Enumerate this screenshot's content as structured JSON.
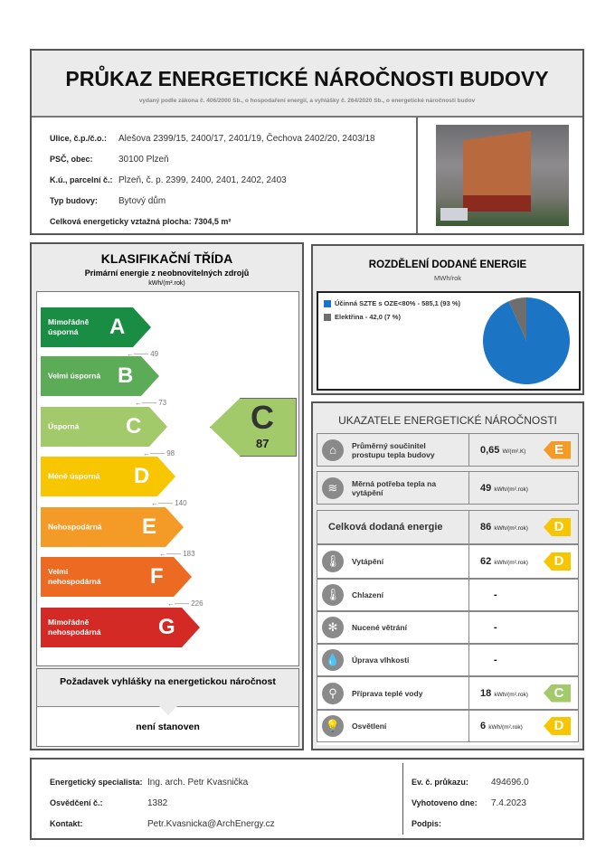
{
  "header": {
    "title": "PRŮKAZ ENERGETICKÉ NÁROČNOSTI BUDOVY",
    "subtitle": "vydaný podle zákona č. 406/2000 Sb., o hospodaření energií, a vyhlášky č. 264/2020 Sb., o energetické náročnosti budov"
  },
  "building": {
    "street_label": "Ulice, č.p./č.o.:",
    "street": "Alešova 2399/15, 2400/17, 2401/19, Čechova 2402/20, 2403/18",
    "zip_label": "PSČ, obec:",
    "zip": "30100 Plzeň",
    "parcel_label": "K.ú., parcelní č.:",
    "parcel": "Plzeň, č. p. 2399, 2400, 2401, 2402, 2403",
    "type_label": "Typ budovy:",
    "type": "Bytový dům",
    "area_label": "Celková energeticky vztažná plocha:",
    "area": "7304,5 m²"
  },
  "classification": {
    "title": "KLASIFIKAČNÍ TŘÍDA",
    "subtitle": "Primární energie z neobnovitelných zdrojů",
    "unit": "kWh/(m².rok)",
    "classes": [
      {
        "letter": "A",
        "label": "Mimořádně úsporná",
        "color": "#1a8d45"
      },
      {
        "letter": "B",
        "label": "Velmi úsporná",
        "color": "#5bab57"
      },
      {
        "letter": "C",
        "label": "Úsporná",
        "color": "#a2c96a"
      },
      {
        "letter": "D",
        "label": "Méně úsporná",
        "color": "#f7c600"
      },
      {
        "letter": "E",
        "label": "Nehospodárná",
        "color": "#f39b26"
      },
      {
        "letter": "F",
        "label": "Velmi nehospodárná",
        "color": "#ec6a22"
      },
      {
        "letter": "G",
        "label": "Mimořádně nehospodárná",
        "color": "#d42a26"
      }
    ],
    "thresholds": [
      "49",
      "73",
      "98",
      "140",
      "183",
      "226"
    ],
    "result": {
      "letter": "C",
      "value": "87"
    },
    "requirement_title": "Požadavek vyhlášky na energetickou náročnost",
    "requirement_value": "není stanoven"
  },
  "energy_split": {
    "title": "ROZDĚLENÍ DODANÉ ENERGIE",
    "unit": "MWh/rok",
    "items": [
      {
        "label": "Účinná SZTE s OZE<80% - 585,1 (93 %)",
        "value": 585.1,
        "color": "#1b75c4"
      },
      {
        "label": "Elektřina - 42,0 (7 %)",
        "value": 42.0,
        "color": "#6e6e6e"
      }
    ]
  },
  "indicators": {
    "title": "UKAZATELE ENERGETICKÉ NÁROČNOSTI",
    "rows": [
      {
        "icon": "house-icon",
        "label": "Průměrný součinitel prostupu tepla budovy",
        "value": "0,65",
        "unit": "W/(m².K)",
        "class": "E",
        "color": "#f39b26"
      },
      {
        "icon": "heat-thermometer-icon",
        "label": "Měrná potřeba tepla na vytápění",
        "value": "49",
        "unit": "kWh/(m².rok)",
        "class": "",
        "color": ""
      },
      {
        "icon": "",
        "label": "Celková dodaná energie",
        "value": "86",
        "unit": "kWh/(m².rok)",
        "class": "D",
        "color": "#f7c600"
      },
      {
        "icon": "thermometer-icon",
        "label": "Vytápění",
        "value": "62",
        "unit": "kWh/(m².rok)",
        "class": "D",
        "color": "#f7c600"
      },
      {
        "icon": "cooling-thermometer-icon",
        "label": "Chlazení",
        "value": "-",
        "unit": "",
        "class": "",
        "color": ""
      },
      {
        "icon": "fan-icon",
        "label": "Nucené větrání",
        "value": "-",
        "unit": "",
        "class": "",
        "color": ""
      },
      {
        "icon": "humidity-icon",
        "label": "Úprava vlhkosti",
        "value": "-",
        "unit": "",
        "class": "",
        "color": ""
      },
      {
        "icon": "faucet-icon",
        "label": "Příprava teplé vody",
        "value": "18",
        "unit": "kWh/(m².rok)",
        "class": "C",
        "color": "#a2c96a"
      },
      {
        "icon": "light-bulb-icon",
        "label": "Osvětlení",
        "value": "6",
        "unit": "kWh/(m².rok)",
        "class": "D",
        "color": "#f7c600"
      }
    ]
  },
  "footer": {
    "specialist_label": "Energetický specialista:",
    "specialist": "Ing. arch. Petr Kvasnička",
    "cert_label": "Osvědčení č.:",
    "cert": "1382",
    "contact_label": "Kontakt:",
    "contact": "Petr.Kvasnicka@ArchEnergy.cz",
    "ev_label": "Ev. č. průkazu:",
    "ev": "494696.0",
    "date_label": "Vyhotoveno dne:",
    "date": "7.4.2023",
    "sign_label": "Podpis:"
  }
}
